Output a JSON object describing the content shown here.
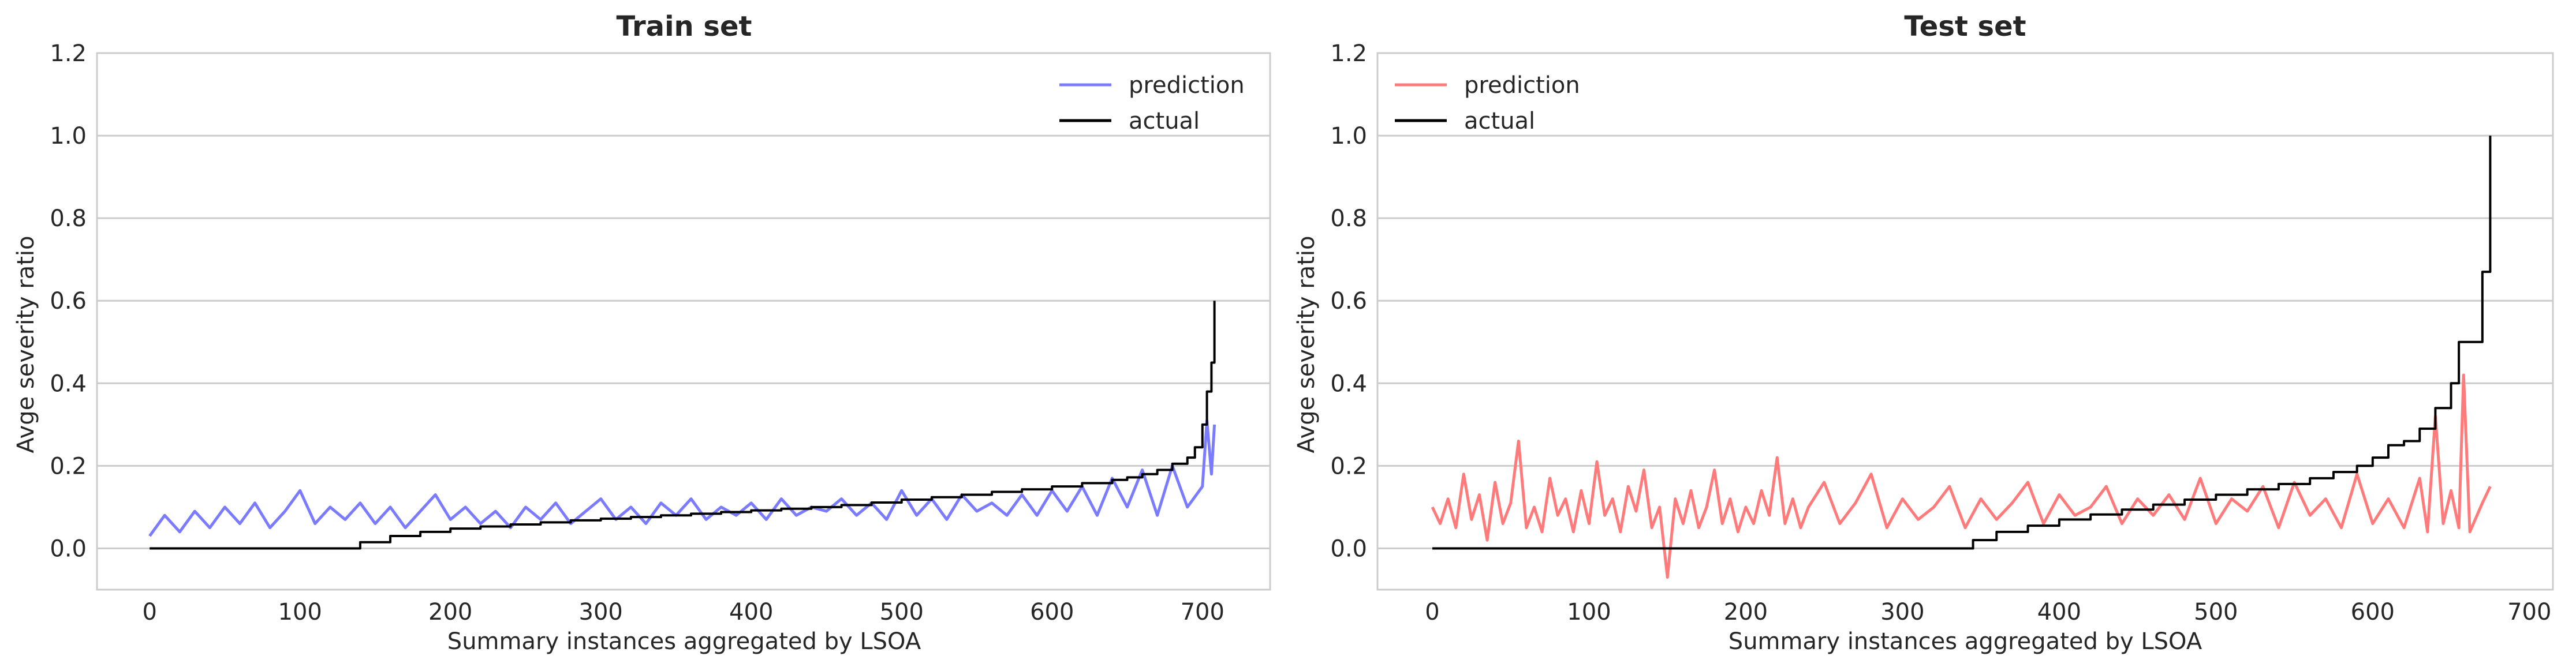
{
  "chart_data": [
    {
      "type": "line",
      "title": "Train set",
      "xlabel": "Summary instances aggregated by LSOA",
      "ylabel": "Avge severity ratio",
      "xlim": [
        -35,
        745
      ],
      "ylim": [
        -0.1,
        1.2
      ],
      "xticks": [
        0,
        100,
        200,
        300,
        400,
        500,
        600,
        700
      ],
      "xtick_labels": [
        "0",
        "100",
        "200",
        "300",
        "400",
        "500",
        "600",
        "700"
      ],
      "yticks": [
        0.0,
        0.2,
        0.4,
        0.6,
        0.8,
        1.0,
        1.2
      ],
      "ytick_labels": [
        "0.0",
        "0.2",
        "0.4",
        "0.6",
        "0.8",
        "1.0",
        "1.2"
      ],
      "grid": "y",
      "legend": "top-right",
      "series": [
        {
          "name": "prediction",
          "color": "#7b7bff",
          "x": [
            0,
            10,
            20,
            30,
            40,
            50,
            60,
            70,
            80,
            90,
            100,
            110,
            120,
            130,
            140,
            150,
            160,
            170,
            180,
            190,
            200,
            210,
            220,
            230,
            240,
            250,
            260,
            270,
            280,
            290,
            300,
            310,
            320,
            330,
            340,
            350,
            360,
            370,
            380,
            390,
            400,
            410,
            420,
            430,
            440,
            450,
            460,
            470,
            480,
            490,
            500,
            510,
            520,
            530,
            540,
            550,
            560,
            570,
            580,
            590,
            600,
            610,
            620,
            630,
            640,
            650,
            660,
            670,
            680,
            690,
            700,
            703,
            706,
            708
          ],
          "y": [
            0.03,
            0.08,
            0.04,
            0.09,
            0.05,
            0.1,
            0.06,
            0.11,
            0.05,
            0.09,
            0.14,
            0.06,
            0.1,
            0.07,
            0.11,
            0.06,
            0.1,
            0.05,
            0.09,
            0.13,
            0.07,
            0.1,
            0.06,
            0.09,
            0.05,
            0.1,
            0.07,
            0.11,
            0.06,
            0.09,
            0.12,
            0.07,
            0.1,
            0.06,
            0.11,
            0.08,
            0.12,
            0.07,
            0.1,
            0.08,
            0.11,
            0.07,
            0.12,
            0.08,
            0.1,
            0.09,
            0.12,
            0.08,
            0.11,
            0.07,
            0.14,
            0.08,
            0.12,
            0.07,
            0.13,
            0.09,
            0.11,
            0.08,
            0.13,
            0.08,
            0.14,
            0.09,
            0.15,
            0.08,
            0.17,
            0.1,
            0.19,
            0.08,
            0.2,
            0.1,
            0.15,
            0.31,
            0.18,
            0.3
          ]
        },
        {
          "name": "actual",
          "color": "#000000",
          "x": [
            0,
            20,
            40,
            60,
            80,
            100,
            120,
            135,
            140,
            160,
            180,
            200,
            220,
            240,
            260,
            280,
            300,
            320,
            340,
            360,
            380,
            400,
            420,
            440,
            460,
            480,
            500,
            520,
            540,
            560,
            580,
            600,
            620,
            640,
            650,
            660,
            670,
            680,
            690,
            695,
            700,
            703,
            706,
            708
          ],
          "y": [
            0.0,
            0.0,
            0.0,
            0.0,
            0.0,
            0.0,
            0.0,
            0.0,
            0.015,
            0.03,
            0.04,
            0.048,
            0.053,
            0.058,
            0.063,
            0.068,
            0.072,
            0.076,
            0.08,
            0.084,
            0.088,
            0.092,
            0.096,
            0.1,
            0.105,
            0.111,
            0.118,
            0.124,
            0.13,
            0.137,
            0.143,
            0.15,
            0.158,
            0.166,
            0.172,
            0.18,
            0.19,
            0.205,
            0.22,
            0.245,
            0.3,
            0.38,
            0.45,
            0.6
          ]
        }
      ]
    },
    {
      "type": "line",
      "title": "Test set",
      "xlabel": "Summary instances aggregated by LSOA",
      "ylabel": "Avge severity ratio",
      "xlim": [
        -35,
        715
      ],
      "ylim": [
        -0.1,
        1.2
      ],
      "xticks": [
        0,
        100,
        200,
        300,
        400,
        500,
        600,
        700
      ],
      "xtick_labels": [
        "0",
        "100",
        "200",
        "300",
        "400",
        "500",
        "600",
        "700"
      ],
      "yticks": [
        0.0,
        0.2,
        0.4,
        0.6,
        0.8,
        1.0,
        1.2
      ],
      "ytick_labels": [
        "0.0",
        "0.2",
        "0.4",
        "0.6",
        "0.8",
        "1.0",
        "1.2"
      ],
      "grid": "y",
      "legend": "top-left",
      "series": [
        {
          "name": "prediction",
          "color": "#ff7b7b",
          "x": [
            0,
            5,
            10,
            15,
            20,
            25,
            30,
            35,
            40,
            45,
            50,
            55,
            60,
            65,
            70,
            75,
            80,
            85,
            90,
            95,
            100,
            105,
            110,
            115,
            120,
            125,
            130,
            135,
            140,
            145,
            150,
            155,
            160,
            165,
            170,
            175,
            180,
            185,
            190,
            195,
            200,
            205,
            210,
            215,
            220,
            225,
            230,
            235,
            240,
            250,
            260,
            270,
            280,
            290,
            300,
            310,
            320,
            330,
            340,
            350,
            360,
            370,
            380,
            390,
            400,
            410,
            420,
            430,
            440,
            450,
            460,
            470,
            480,
            490,
            500,
            510,
            520,
            530,
            540,
            550,
            560,
            570,
            580,
            590,
            600,
            610,
            620,
            630,
            635,
            640,
            645,
            650,
            655,
            658,
            662,
            670,
            675
          ],
          "y": [
            0.1,
            0.06,
            0.12,
            0.05,
            0.18,
            0.07,
            0.13,
            0.02,
            0.16,
            0.06,
            0.11,
            0.26,
            0.05,
            0.1,
            0.04,
            0.17,
            0.08,
            0.12,
            0.04,
            0.14,
            0.06,
            0.21,
            0.08,
            0.12,
            0.04,
            0.15,
            0.09,
            0.19,
            0.05,
            0.1,
            -0.07,
            0.12,
            0.06,
            0.14,
            0.05,
            0.1,
            0.19,
            0.06,
            0.12,
            0.04,
            0.1,
            0.06,
            0.14,
            0.08,
            0.22,
            0.06,
            0.12,
            0.05,
            0.1,
            0.16,
            0.06,
            0.11,
            0.18,
            0.05,
            0.12,
            0.07,
            0.1,
            0.15,
            0.05,
            0.12,
            0.07,
            0.11,
            0.16,
            0.06,
            0.13,
            0.08,
            0.1,
            0.15,
            0.06,
            0.12,
            0.08,
            0.13,
            0.07,
            0.17,
            0.06,
            0.12,
            0.09,
            0.15,
            0.05,
            0.16,
            0.08,
            0.12,
            0.05,
            0.18,
            0.06,
            0.12,
            0.05,
            0.17,
            0.04,
            0.32,
            0.06,
            0.14,
            0.05,
            0.42,
            0.04,
            0.11,
            0.15
          ]
        },
        {
          "name": "actual",
          "color": "#000000",
          "x": [
            0,
            50,
            100,
            150,
            200,
            250,
            300,
            340,
            345,
            360,
            380,
            400,
            420,
            440,
            460,
            480,
            500,
            520,
            540,
            560,
            575,
            590,
            600,
            610,
            620,
            630,
            640,
            650,
            655,
            665,
            670,
            675
          ],
          "y": [
            0.0,
            0.0,
            0.0,
            0.0,
            0.0,
            0.0,
            0.0,
            0.0,
            0.02,
            0.04,
            0.055,
            0.07,
            0.082,
            0.094,
            0.106,
            0.118,
            0.13,
            0.143,
            0.156,
            0.17,
            0.185,
            0.2,
            0.22,
            0.25,
            0.26,
            0.29,
            0.34,
            0.4,
            0.5,
            0.5,
            0.67,
            1.0
          ]
        }
      ]
    }
  ]
}
